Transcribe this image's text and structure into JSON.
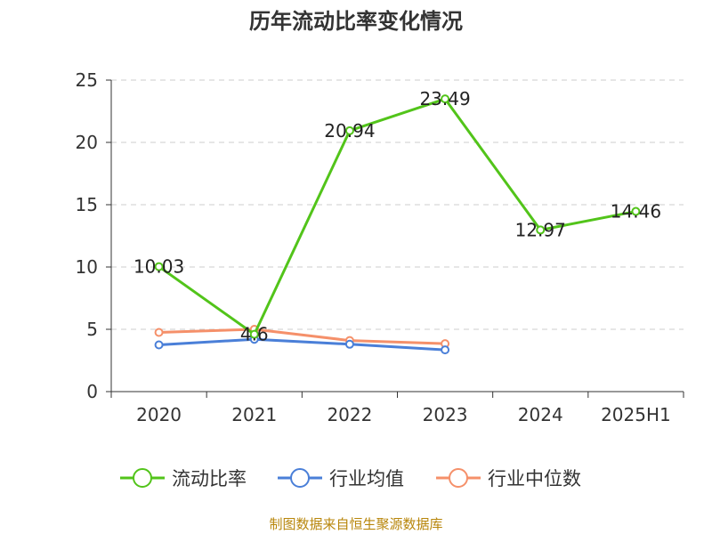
{
  "chart_data": {
    "type": "line",
    "title": "历年流动比率变化情况",
    "categories": [
      "2020",
      "2021",
      "2022",
      "2023",
      "2024",
      "2025H1"
    ],
    "ylim": [
      0,
      25
    ],
    "yticks": [
      0,
      5,
      10,
      15,
      20,
      25
    ],
    "grid": true,
    "legend_position": "bottom",
    "series": [
      {
        "name": "流动比率",
        "color": "#52c41a",
        "values": [
          10.03,
          4.6,
          20.94,
          23.49,
          12.97,
          14.46
        ],
        "labels": [
          "10.03",
          "4.6",
          "20.94",
          "23.49",
          "12.97",
          "14.46"
        ]
      },
      {
        "name": "行业均值",
        "color": "#4a7fd8",
        "values": [
          3.75,
          4.2,
          3.8,
          3.35,
          null,
          null
        ]
      },
      {
        "name": "行业中位数",
        "color": "#f5906a",
        "values": [
          4.75,
          5.0,
          4.1,
          3.85,
          null,
          null
        ]
      }
    ],
    "source": "制图数据来自恒生聚源数据库"
  }
}
